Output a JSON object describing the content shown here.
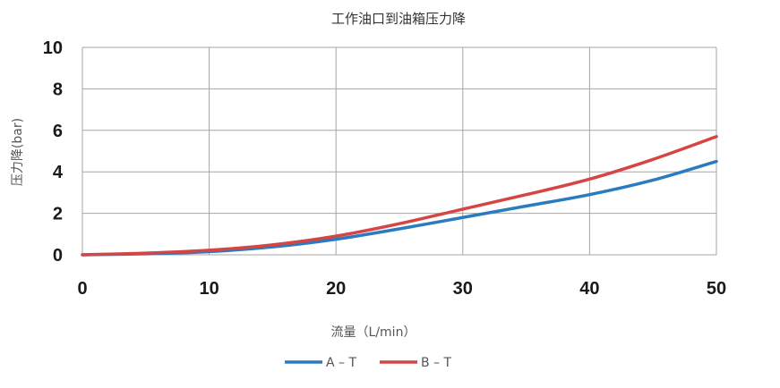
{
  "chart_data": {
    "type": "line",
    "title": "工作油口到油箱压力降",
    "xlabel": "流量（L/min）",
    "ylabel": "压力降(bar)",
    "xlim": [
      0,
      50
    ],
    "ylim": [
      0,
      10
    ],
    "x_ticks": [
      "0",
      "10",
      "20",
      "30",
      "40",
      "50"
    ],
    "y_ticks": [
      "0",
      "2",
      "4",
      "6",
      "8",
      "10"
    ],
    "grid": true,
    "legend_position": "bottom",
    "series": [
      {
        "name": "A – T",
        "color": "#2a7bbf",
        "x": [
          0,
          5,
          10,
          15,
          20,
          25,
          30,
          35,
          40,
          45,
          50
        ],
        "y": [
          0,
          0.05,
          0.15,
          0.38,
          0.75,
          1.25,
          1.8,
          2.35,
          2.9,
          3.6,
          4.5
        ]
      },
      {
        "name": "B – T",
        "color": "#d64545",
        "x": [
          0,
          5,
          10,
          15,
          20,
          25,
          30,
          35,
          40,
          45,
          50
        ],
        "y": [
          0,
          0.08,
          0.22,
          0.48,
          0.9,
          1.5,
          2.2,
          2.9,
          3.65,
          4.6,
          5.7
        ]
      }
    ]
  }
}
